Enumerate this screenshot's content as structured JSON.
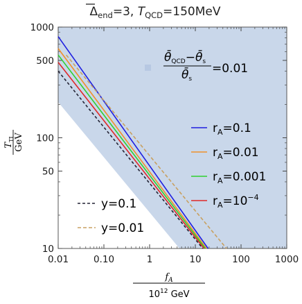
{
  "chart_data": {
    "type": "line",
    "title": "Δ̅end=3, TQCD=150MeV",
    "title_parts": {
      "delta_symbol": "Δ",
      "delta_sub": "end",
      "delta_value": "=3, ",
      "t_symbol": "T",
      "t_sub": "QCD",
      "t_value": "=150MeV"
    },
    "xlabel": {
      "symbol": "f",
      "sub": "A",
      "denominator": "10",
      "exponent": "12",
      "unit": " GeV"
    },
    "ylabel": {
      "symbol": "T",
      "sub": "TI",
      "denominator": "GeV"
    },
    "x_scale": "log",
    "y_scale": "log",
    "xlim": [
      0.01,
      1000
    ],
    "ylim": [
      10,
      1000
    ],
    "x_ticks": [
      {
        "value": 0.01,
        "label": "0.01"
      },
      {
        "value": 0.1,
        "label": "0.10"
      },
      {
        "value": 1,
        "label": "1"
      },
      {
        "value": 10,
        "label": "10"
      },
      {
        "value": 100,
        "label": "100"
      },
      {
        "value": 1000,
        "label": "1000"
      }
    ],
    "y_ticks": [
      {
        "value": 10,
        "label": "10"
      },
      {
        "value": 50,
        "label": "50"
      },
      {
        "value": 100,
        "label": "100"
      },
      {
        "value": 500,
        "label": "500"
      },
      {
        "value": 1000,
        "label": "1000"
      }
    ],
    "region": {
      "legend_label": "=0.01",
      "legend_fraction": {
        "num_a": "θ̄",
        "num_a_sub": "QCD",
        "minus": "−",
        "num_b": "θ̄",
        "num_b_sub": "s",
        "den": "θ̄",
        "den_sub": "s"
      },
      "color": "#c9d7ea",
      "polygon": [
        [
          0.01,
          1000
        ],
        [
          1000,
          1000
        ],
        [
          1000,
          10
        ],
        [
          4.5,
          10
        ],
        [
          0.01,
          210
        ]
      ]
    },
    "series": [
      {
        "name": "rA=0.1",
        "label_main": "r",
        "label_sub": "A",
        "label_value": "=0.1",
        "color": "#1f1fe0",
        "dash": "",
        "points": [
          [
            0.01,
            820
          ],
          [
            19,
            10
          ]
        ]
      },
      {
        "name": "rA=0.01",
        "label_main": "r",
        "label_sub": "A",
        "label_value": "=0.01",
        "color": "#f0902a",
        "dash": "",
        "points": [
          [
            0.01,
            640
          ],
          [
            17.5,
            10
          ]
        ]
      },
      {
        "name": "rA=0.001",
        "label_main": "r",
        "label_sub": "A",
        "label_value": "=0.001",
        "color": "#2fd12f",
        "dash": "",
        "points": [
          [
            0.01,
            560
          ],
          [
            16.5,
            10
          ]
        ]
      },
      {
        "name": "rA=10−4",
        "label_main": "r",
        "label_sub": "A",
        "label_value": "=10",
        "label_sup": "−4",
        "color": "#e02828",
        "dash": "",
        "points": [
          [
            0.01,
            480
          ],
          [
            15.5,
            10
          ]
        ]
      },
      {
        "name": "y=0.1",
        "label_main": "y=0.1",
        "color": "#222233",
        "dash": "4,3",
        "points": [
          [
            0.01,
            400
          ],
          [
            14.5,
            10
          ]
        ]
      },
      {
        "name": "y=0.01",
        "label_main": "y=0.01",
        "color": "#c8a060",
        "dash": "5,3",
        "points": [
          [
            0.015,
            560
          ],
          [
            48,
            10
          ]
        ]
      }
    ]
  }
}
